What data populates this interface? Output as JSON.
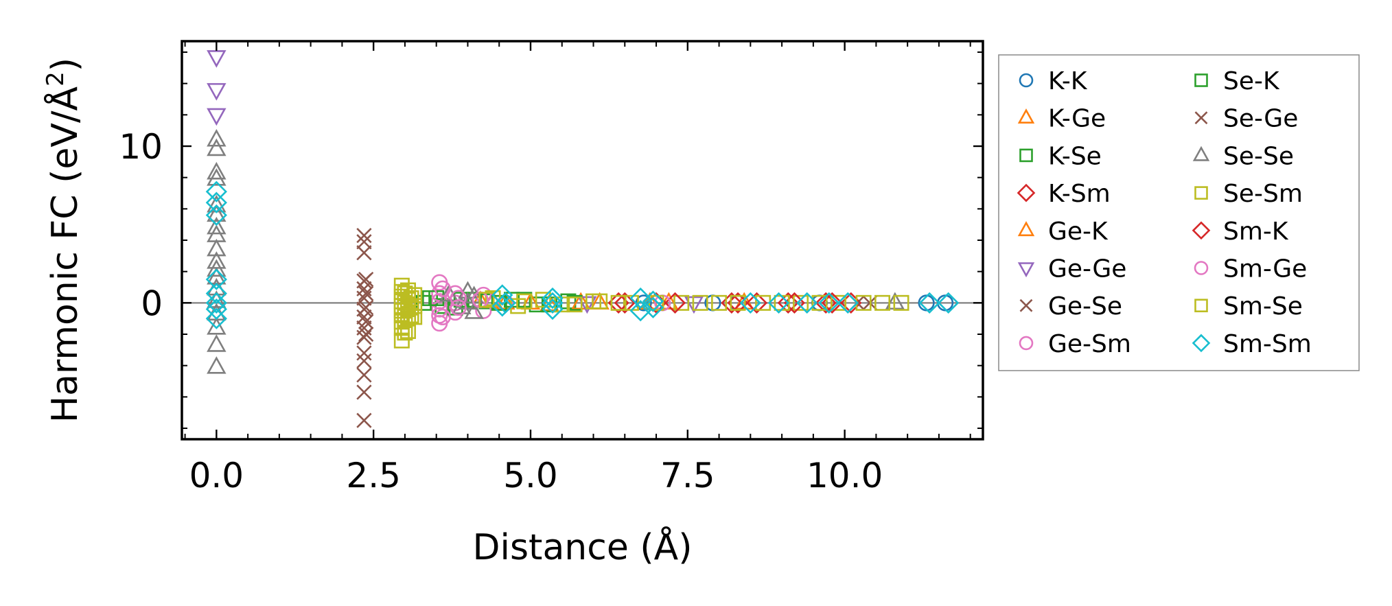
{
  "chart_data": {
    "type": "scatter",
    "xlabel": "Distance (Å)",
    "ylabel_base": "Harmonic FC (eV/Å",
    "ylabel_sup": "2",
    "ylabel_end": ")",
    "xlim": [
      -0.55,
      12.2
    ],
    "ylim": [
      -8.7,
      16.7
    ],
    "xticks": [
      0.0,
      2.5,
      5.0,
      7.5,
      10.0
    ],
    "xtick_labels": [
      "0.0",
      "2.5",
      "5.0",
      "7.5",
      "10.0"
    ],
    "yticks": [
      0,
      10
    ],
    "ytick_labels": [
      "0",
      "10"
    ],
    "reference_line_y": 0,
    "legend_position": "outside-right",
    "series": [
      {
        "name": "K-K",
        "color": "#1f77b4",
        "marker": "circle",
        "x": [
          6.8,
          7.9,
          8.3,
          9.6,
          11.3,
          11.6
        ],
        "y": [
          0.0,
          0.0,
          0.0,
          0.0,
          0.0,
          0.0
        ]
      },
      {
        "name": "K-Ge",
        "color": "#ff7f0e",
        "marker": "triangle-up",
        "x": [
          4.2,
          4.6,
          5.3,
          6.1,
          7.2,
          8.4
        ],
        "y": [
          0.1,
          0.0,
          -0.1,
          0.0,
          0.0,
          0.0
        ]
      },
      {
        "name": "K-Se",
        "color": "#2ca02c",
        "marker": "square",
        "x": [
          3.4,
          3.6,
          3.9,
          4.3,
          4.7,
          5.1,
          5.6
        ],
        "y": [
          0.3,
          -0.2,
          0.2,
          0.1,
          0.2,
          -0.1,
          0.1
        ]
      },
      {
        "name": "K-Sm",
        "color": "#d62728",
        "marker": "diamond",
        "x": [
          6.5,
          7.0,
          8.2,
          8.6,
          9.1,
          9.7,
          10.1
        ],
        "y": [
          0.0,
          0.0,
          0.0,
          0.0,
          0.0,
          0.0,
          0.0
        ]
      },
      {
        "name": "Ge-K",
        "color": "#ff7f0e",
        "marker": "triangle-up",
        "x": [
          4.4,
          5.0,
          5.8,
          6.9
        ],
        "y": [
          0.1,
          0.0,
          0.0,
          0.0
        ]
      },
      {
        "name": "Ge-Ge",
        "color": "#9467bd",
        "marker": "triangle-down",
        "x": [
          0.0,
          0.0,
          0.0,
          5.9,
          7.6
        ],
        "y": [
          15.7,
          13.6,
          12.0,
          0.0,
          0.0
        ]
      },
      {
        "name": "Ge-Se",
        "color": "#8c564b",
        "marker": "x",
        "x": [
          2.35,
          2.35,
          2.35,
          2.35,
          2.35,
          2.35,
          2.35,
          2.35,
          2.35,
          2.35,
          2.35,
          2.35,
          2.35,
          2.35,
          2.35,
          10.4
        ],
        "y": [
          4.3,
          3.9,
          3.2,
          1.4,
          0.9,
          0.3,
          -0.4,
          -0.9,
          -1.6,
          -2.2,
          -3.2,
          -3.7,
          -4.6,
          -5.7,
          -7.5,
          0.0
        ]
      },
      {
        "name": "Ge-Sm",
        "color": "#e377c2",
        "marker": "circle",
        "x": [
          3.55,
          3.55,
          3.55,
          3.55,
          3.55,
          3.55,
          3.8,
          3.8,
          3.8,
          4.25,
          4.25,
          4.6
        ],
        "y": [
          1.3,
          0.6,
          0.1,
          -0.4,
          -0.8,
          -1.3,
          0.6,
          0.0,
          -0.6,
          0.5,
          -0.5,
          0.0
        ]
      },
      {
        "name": "Se-K",
        "color": "#2ca02c",
        "marker": "square",
        "x": [
          3.3,
          3.5,
          3.8,
          4.1,
          4.5,
          4.9,
          5.3,
          5.7
        ],
        "y": [
          0.0,
          0.3,
          -0.3,
          0.2,
          0.0,
          0.2,
          -0.1,
          0.0
        ]
      },
      {
        "name": "Se-Ge",
        "color": "#8c564b",
        "marker": "x",
        "x": [
          2.38,
          2.38,
          2.38,
          2.38,
          2.38,
          10.2
        ],
        "y": [
          1.5,
          0.6,
          -0.3,
          -1.2,
          -2.0,
          0.0
        ]
      },
      {
        "name": "Se-Se",
        "color": "#7f7f7f",
        "marker": "triangle-up",
        "x": [
          0.0,
          0.0,
          0.0,
          0.0,
          0.0,
          0.0,
          0.0,
          0.0,
          0.0,
          0.0,
          0.0,
          0.0,
          0.0,
          0.0,
          0.0,
          0.0,
          0.0,
          0.0,
          3.7,
          3.9,
          4.0,
          4.0,
          4.1,
          4.1,
          10.8
        ],
        "y": [
          10.4,
          9.8,
          8.3,
          7.9,
          6.2,
          5.6,
          4.8,
          4.3,
          3.4,
          2.6,
          2.1,
          1.6,
          0.9,
          0.1,
          -0.7,
          -1.6,
          -2.7,
          -4.1,
          0.5,
          -0.3,
          0.7,
          0.0,
          -0.6,
          0.4,
          0.0
        ]
      },
      {
        "name": "Se-Sm",
        "color": "#bcbd22",
        "marker": "square",
        "x": [
          2.95,
          2.95,
          2.95,
          2.95,
          2.95,
          2.95,
          2.95,
          2.95,
          2.95,
          2.95,
          3.05,
          3.05,
          3.05,
          3.05,
          3.05,
          3.15,
          3.15,
          3.15,
          4.4,
          4.8,
          5.2,
          5.7,
          6.1,
          6.6,
          7.4,
          8.0,
          8.7,
          9.3,
          9.9,
          10.6
        ],
        "y": [
          1.1,
          0.7,
          0.4,
          0.1,
          -0.2,
          -0.5,
          -0.8,
          -1.2,
          -1.6,
          -2.4,
          0.8,
          0.2,
          -0.4,
          -1.0,
          -1.8,
          0.5,
          -0.2,
          -0.9,
          0.3,
          -0.2,
          0.2,
          -0.1,
          0.1,
          0.0,
          0.0,
          0.0,
          0.0,
          0.0,
          0.0,
          0.0
        ]
      },
      {
        "name": "Sm-K",
        "color": "#d62728",
        "marker": "diamond",
        "x": [
          6.4,
          7.3,
          8.3,
          9.2,
          9.8
        ],
        "y": [
          0.0,
          0.0,
          0.0,
          0.0,
          0.0
        ]
      },
      {
        "name": "Sm-Ge",
        "color": "#e377c2",
        "marker": "circle",
        "x": [
          3.6,
          3.6,
          3.85,
          3.85,
          4.2,
          7.1
        ],
        "y": [
          0.9,
          -0.9,
          0.3,
          -0.3,
          0.2,
          0.0
        ]
      },
      {
        "name": "Sm-Se",
        "color": "#bcbd22",
        "marker": "square",
        "x": [
          3.0,
          3.0,
          3.0,
          3.0,
          3.0,
          3.1,
          3.1,
          3.1,
          4.3,
          4.9,
          5.5,
          6.0,
          6.4,
          7.0,
          7.7,
          8.3,
          9.0,
          9.6,
          10.3,
          10.9
        ],
        "y": [
          0.6,
          0.0,
          -0.5,
          -1.1,
          -1.9,
          0.3,
          -0.3,
          -0.8,
          0.2,
          0.1,
          -0.1,
          0.1,
          0.0,
          0.0,
          0.0,
          0.0,
          0.0,
          0.0,
          0.0,
          0.0
        ]
      },
      {
        "name": "Sm-Sm",
        "color": "#17becf",
        "marker": "diamond",
        "x": [
          0.0,
          0.0,
          0.0,
          0.0,
          0.0,
          0.0,
          0.0,
          0.0,
          4.55,
          4.55,
          4.6,
          5.35,
          5.35,
          5.35,
          6.75,
          6.75,
          6.95,
          6.95,
          8.5,
          8.95,
          9.4,
          9.75,
          10.05,
          11.35,
          11.65
        ],
        "y": [
          7.1,
          6.4,
          5.6,
          1.5,
          0.6,
          0.0,
          -0.4,
          -1.0,
          0.5,
          -0.2,
          0.0,
          0.3,
          -0.4,
          0.0,
          0.3,
          -0.5,
          0.1,
          -0.3,
          0.0,
          0.0,
          0.0,
          0.0,
          0.0,
          0.0,
          0.0
        ]
      }
    ]
  }
}
